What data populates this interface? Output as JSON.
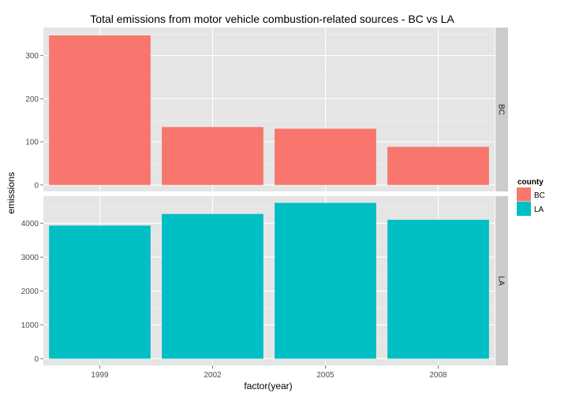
{
  "chart_data": {
    "type": "bar",
    "title": "Total emissions from motor vehicle combustion-related sources  - BC vs LA",
    "xlabel": "factor(year)",
    "ylabel": "emissions",
    "categories": [
      "1999",
      "2002",
      "2005",
      "2008"
    ],
    "facet": "rows",
    "grid": true,
    "legend": {
      "title": "county",
      "placement": "right",
      "entries": [
        "BC",
        "LA"
      ]
    },
    "series": [
      {
        "name": "BC",
        "color": "#F8766D",
        "values": [
          346.8,
          134.3,
          130.4,
          88.3
        ],
        "ylim": [
          -15,
          365
        ],
        "yticks": [
          0,
          100,
          200,
          300
        ],
        "strip": "BC"
      },
      {
        "name": "LA",
        "color": "#00BFC4",
        "values": [
          3931.1,
          4274.0,
          4601.4,
          4101.3
        ],
        "ylim": [
          -200,
          4800
        ],
        "yticks": [
          0,
          1000,
          2000,
          3000,
          4000
        ],
        "strip": "LA"
      }
    ]
  }
}
